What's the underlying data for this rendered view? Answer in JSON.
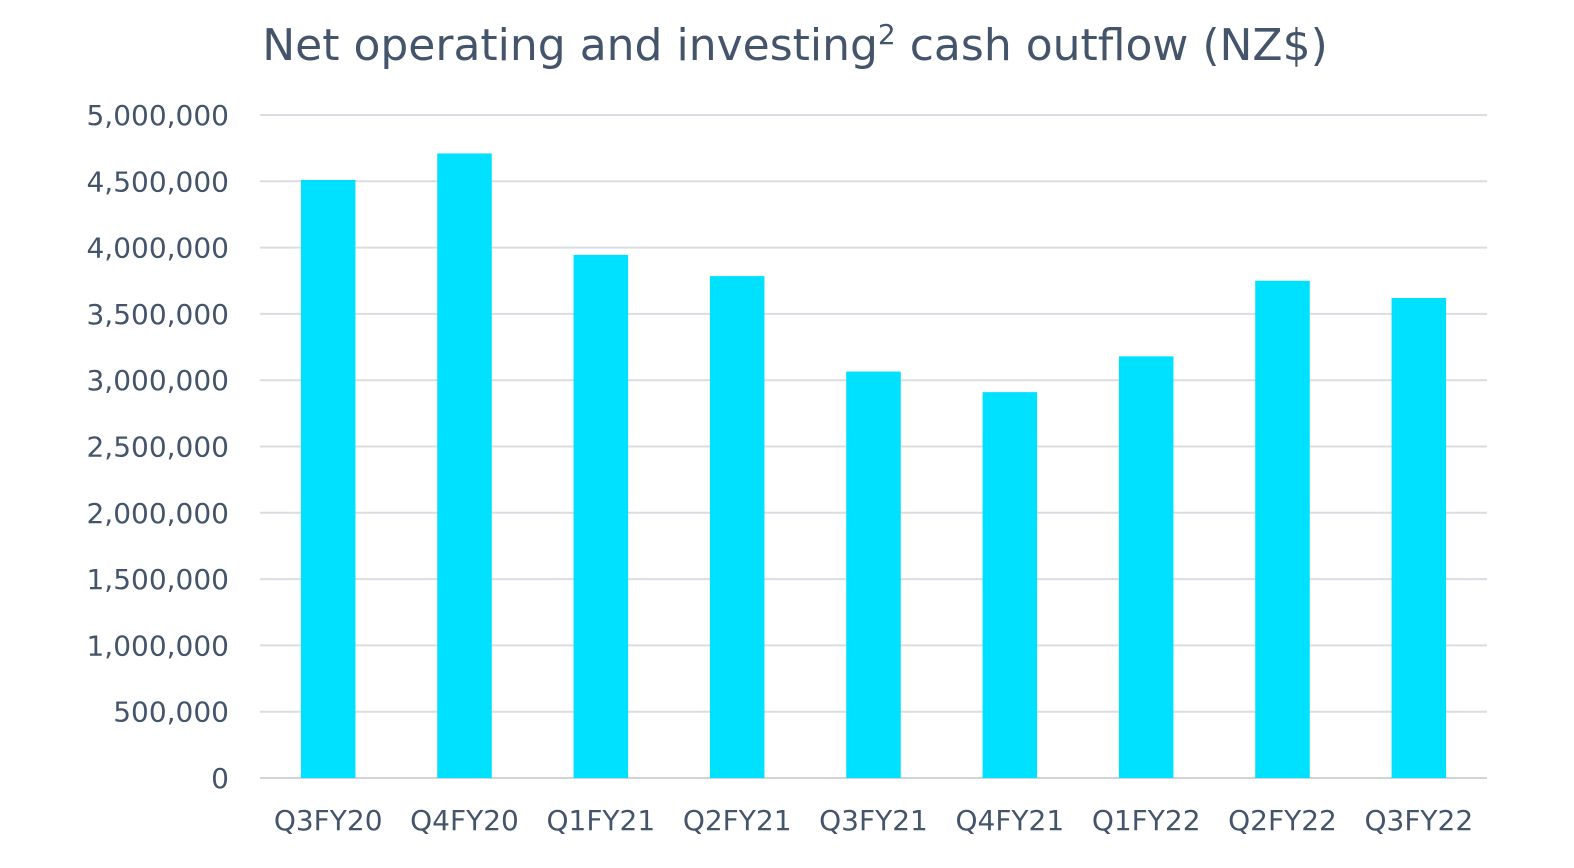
{
  "chart_data": {
    "type": "bar",
    "title": {
      "main": "Net operating and investing",
      "superscript": "2",
      "rest": " cash outflow (NZ$)"
    },
    "xlabel": "",
    "ylabel": "",
    "categories": [
      "Q3FY20",
      "Q4FY20",
      "Q1FY21",
      "Q2FY21",
      "Q3FY21",
      "Q4FY21",
      "Q1FY22",
      "Q2FY22",
      "Q3FY22"
    ],
    "values": [
      4510000,
      4710000,
      3945000,
      3785000,
      3065000,
      2910000,
      3180000,
      3750000,
      3620000
    ],
    "ylim": [
      0,
      5000000
    ],
    "yticks": [
      0,
      500000,
      1000000,
      1500000,
      2000000,
      2500000,
      3000000,
      3500000,
      4000000,
      4500000,
      5000000
    ],
    "ytick_labels": [
      "0",
      "500,000",
      "1,000,000",
      "1,500,000",
      "2,000,000",
      "2,500,000",
      "3,000,000",
      "3,500,000",
      "4,000,000",
      "4,500,000",
      "5,000,000"
    ],
    "grid": true,
    "legend": "none",
    "colors": {
      "bar": "#00e0ff",
      "text": "#44546a",
      "grid": "#d9dde2"
    }
  }
}
